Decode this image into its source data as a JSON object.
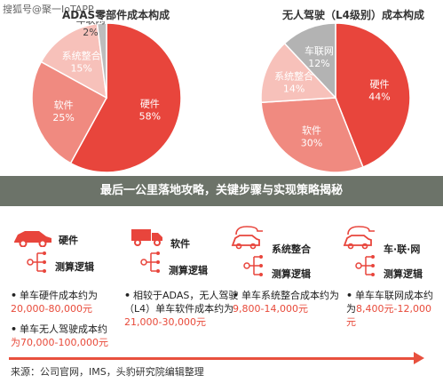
{
  "watermark": "搜狐号@聚一IoTAPP",
  "chart_data": [
    {
      "type": "pie",
      "title": "ADAS零部件成本构成",
      "slices": [
        {
          "label": "硬件",
          "value": 58,
          "display": "58%",
          "color": "#e8453c"
        },
        {
          "label": "软件",
          "value": 25,
          "display": "25%",
          "color": "#f08a80"
        },
        {
          "label": "系统整合",
          "value": 15,
          "display": "15%",
          "color": "#f7c1ba"
        },
        {
          "label": "车联网",
          "value": 2,
          "display": "2%",
          "color": "#bdbdbd"
        }
      ]
    },
    {
      "type": "pie",
      "title": "无人驾驶（L4级别）成本构成",
      "slices": [
        {
          "label": "硬件",
          "value": 44,
          "display": "44%",
          "color": "#e8453c"
        },
        {
          "label": "软件",
          "value": 30,
          "display": "30%",
          "color": "#f08a80"
        },
        {
          "label": "系统整合",
          "value": 14,
          "display": "14%",
          "color": "#f7c1ba"
        },
        {
          "label": "车联网",
          "value": 12,
          "display": "12%",
          "color": "#b3b3b3"
        }
      ]
    }
  ],
  "banner": "最后一公里落地攻略，关键步骤与实现策略揭秘",
  "categories": [
    {
      "name": "硬件",
      "sub": "测算逻辑",
      "icon": "car-icon"
    },
    {
      "name": "软件",
      "sub": "测算逻辑",
      "icon": "truck-icon"
    },
    {
      "name": "系统整合",
      "sub": "测算逻辑",
      "icon": "charging-car-icon"
    },
    {
      "name": "车·联·网",
      "sub": "测算逻辑",
      "icon": "connected-car-icon"
    }
  ],
  "notes": {
    "hardware": {
      "b1_text": "单车硬件成本约为",
      "b1_value": "20,000-80,000元",
      "b2_text": "单车无人驾驶成本约",
      "b2_value": "为70,000-100,000元"
    },
    "software": {
      "text": "相较于ADAS，无人驾驶（L4）单车软件成本约为",
      "value": "21,000-30,000元"
    },
    "integration": {
      "text": "单车系统整合成本约为",
      "value": "9,800-14,000元"
    },
    "telematics": {
      "text": "单车车联网成本约为",
      "value": "8,400元-12,000元"
    }
  },
  "source": "来源：公司官网，IMS，头豹研究院编辑整理",
  "colors": {
    "accent": "#e8453c",
    "banner": "#586054"
  }
}
